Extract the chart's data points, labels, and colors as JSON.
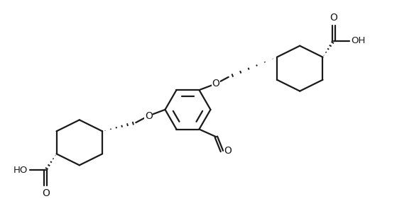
{
  "bg_color": "#ffffff",
  "line_color": "#1a1a1a",
  "lw": 1.6,
  "figsize": [
    5.9,
    2.98
  ],
  "dpi": 100,
  "xlim": [
    -2.9,
    4.3
  ],
  "ylim": [
    -2.05,
    2.05
  ]
}
